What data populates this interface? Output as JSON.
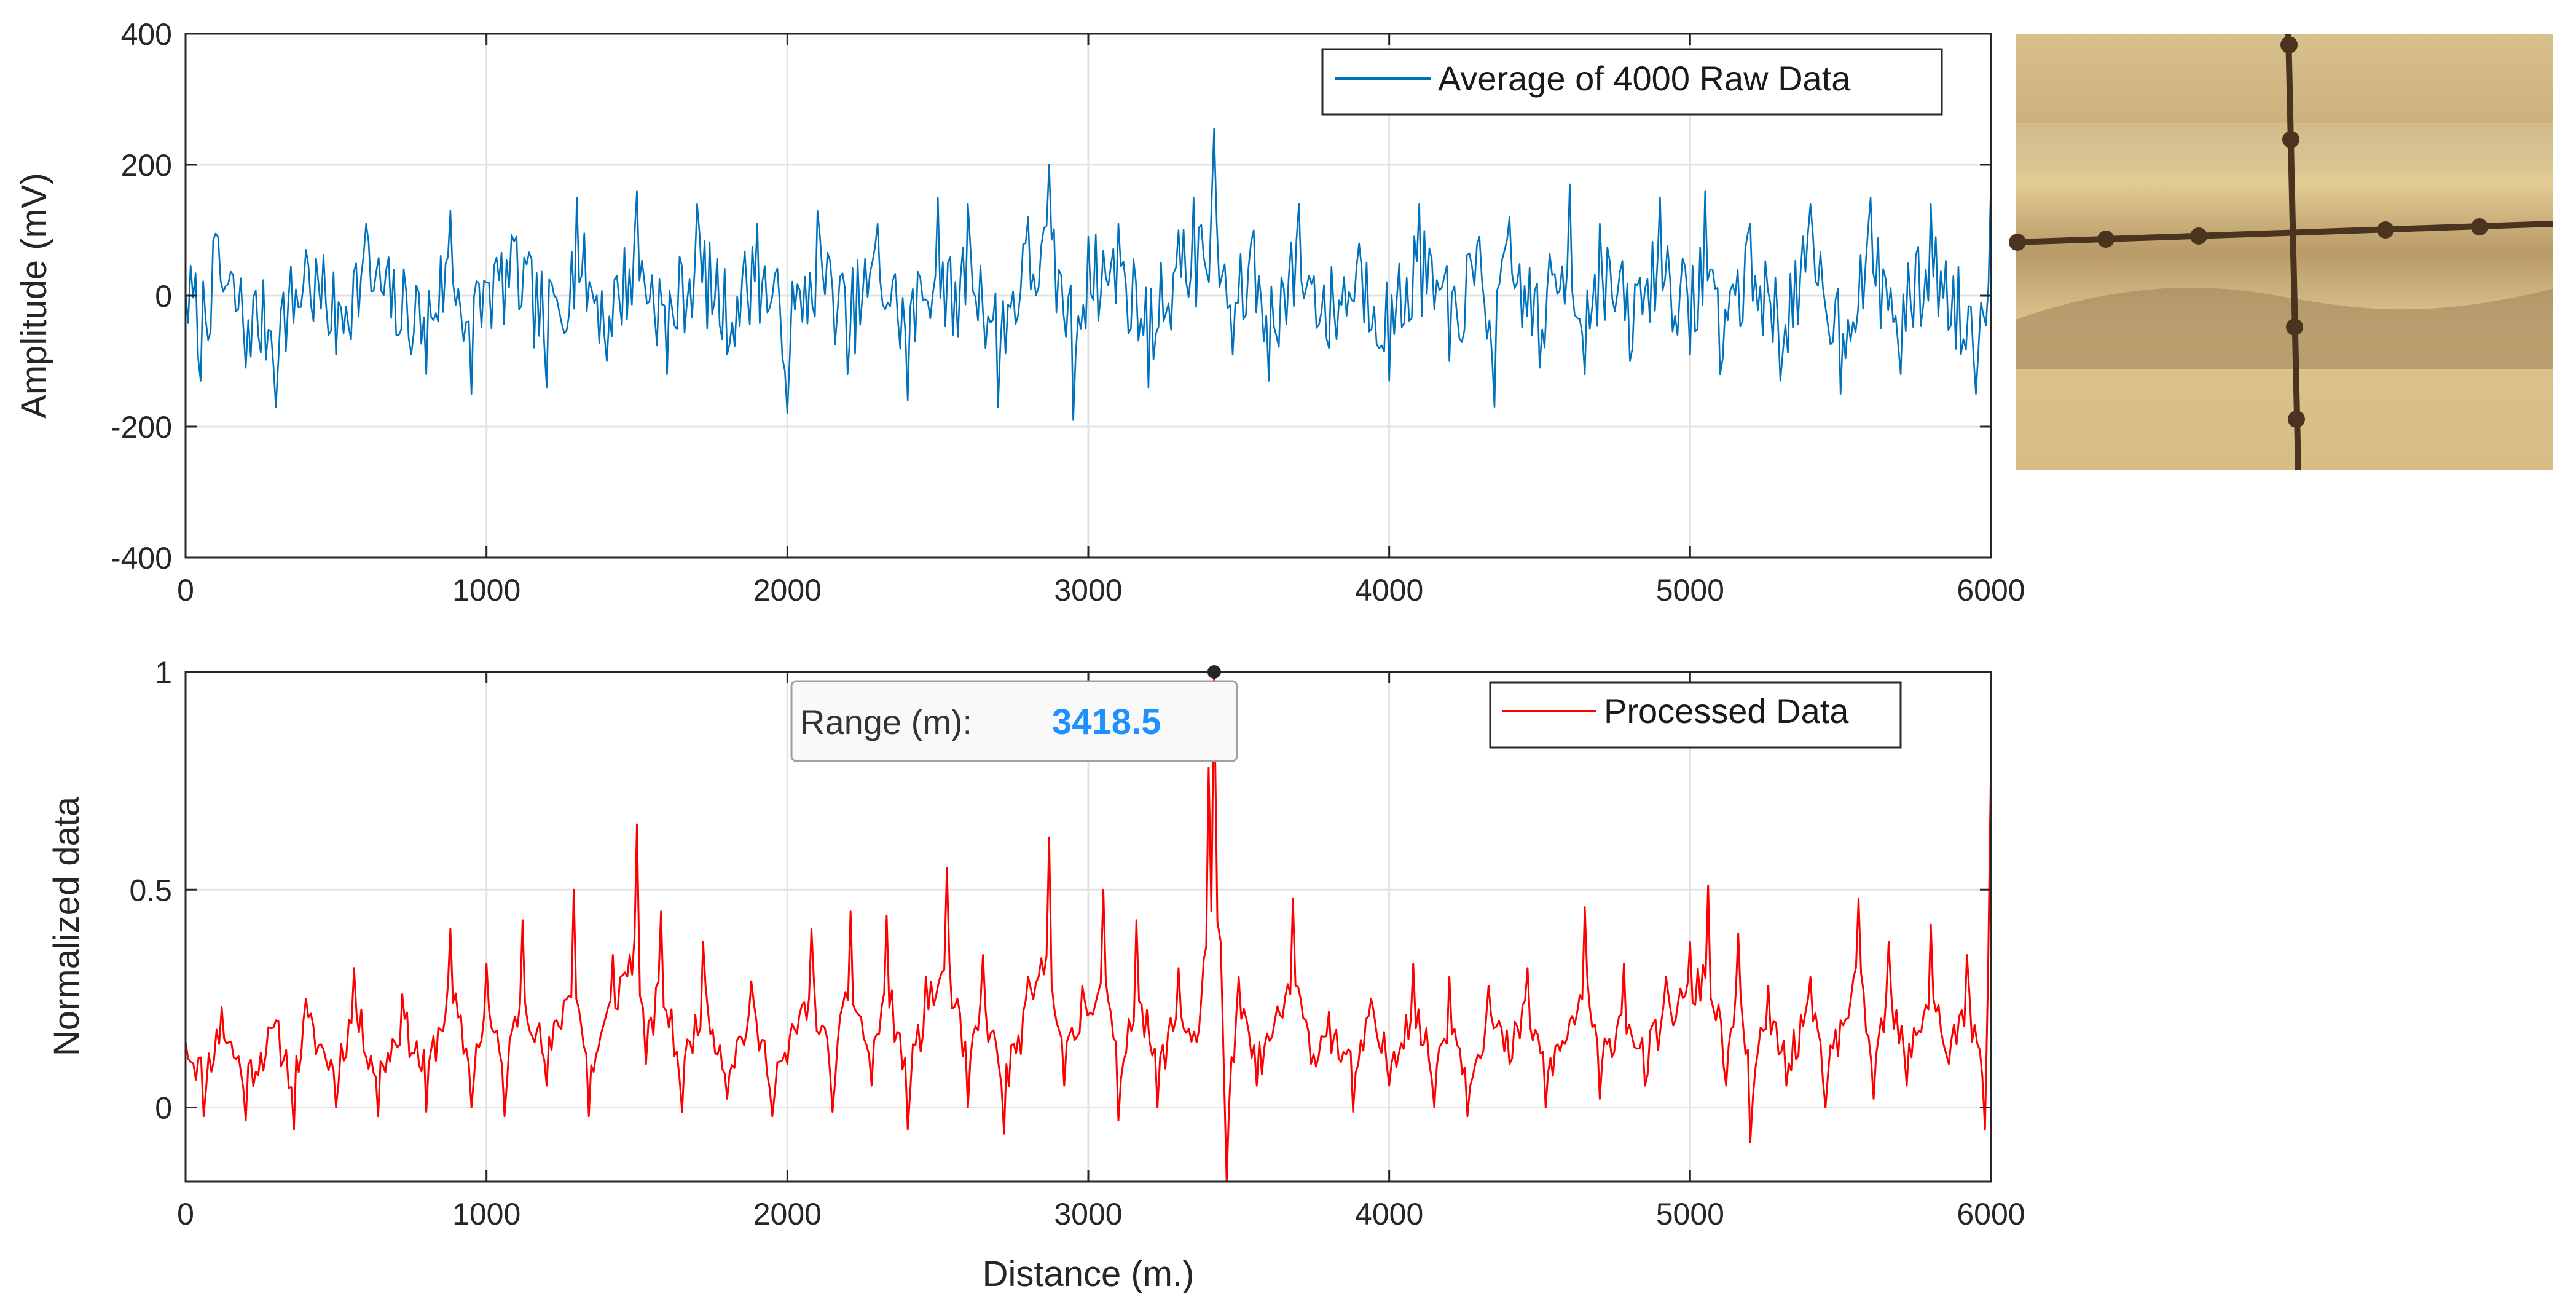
{
  "chart_data": [
    {
      "type": "line",
      "title": "",
      "xlabel": "",
      "ylabel": "Amplitude (mV)",
      "xlim": [
        0,
        6000
      ],
      "ylim": [
        -400,
        400
      ],
      "xticks": [
        0,
        1000,
        2000,
        3000,
        4000,
        5000,
        6000
      ],
      "yticks": [
        -400,
        -200,
        0,
        200,
        400
      ],
      "grid": true,
      "legend_position": "top-right",
      "series": [
        {
          "name": "Average of 4000 Raw Data",
          "color": "#0072bd",
          "x": [
            0,
            50,
            100,
            200,
            300,
            400,
            500,
            600,
            700,
            800,
            880,
            950,
            1000,
            1100,
            1200,
            1300,
            1400,
            1500,
            1600,
            1700,
            1800,
            1900,
            2000,
            2050,
            2100,
            2200,
            2300,
            2400,
            2500,
            2550,
            2600,
            2700,
            2800,
            2870,
            2950,
            3000,
            3100,
            3200,
            3300,
            3350,
            3418,
            3480,
            3550,
            3600,
            3700,
            3800,
            3900,
            4000,
            4100,
            4200,
            4300,
            4350,
            4400,
            4500,
            4600,
            4650,
            4700,
            4800,
            4900,
            5000,
            5050,
            5100,
            5200,
            5300,
            5400,
            5500,
            5600,
            5700,
            5800,
            5900,
            5950,
            6000
          ],
          "values": [
            5,
            -130,
            95,
            -110,
            -170,
            70,
            -90,
            110,
            -60,
            -120,
            130,
            -150,
            20,
            90,
            -140,
            150,
            -100,
            160,
            -120,
            140,
            -90,
            110,
            -180,
            -40,
            130,
            -120,
            110,
            -160,
            150,
            -60,
            140,
            -170,
            120,
            200,
            -190,
            90,
            110,
            -140,
            100,
            150,
            255,
            -90,
            100,
            -130,
            140,
            -80,
            80,
            -130,
            140,
            -100,
            90,
            -170,
            120,
            -110,
            170,
            -120,
            110,
            -100,
            150,
            -90,
            160,
            -120,
            110,
            -130,
            140,
            -150,
            150,
            -120,
            140,
            -90,
            -150,
            180
          ]
        }
      ]
    },
    {
      "type": "line",
      "title": "",
      "xlabel": "Distance (m.)",
      "ylabel": "Normalized data",
      "xlim": [
        0,
        6000
      ],
      "ylim": [
        -0.17,
        1
      ],
      "xticks": [
        0,
        1000,
        2000,
        3000,
        4000,
        5000,
        6000
      ],
      "yticks": [
        0,
        0.5,
        1
      ],
      "ytick_labels": [
        "0",
        "0.5",
        "1"
      ],
      "grid": true,
      "legend_position": "top-right",
      "series": [
        {
          "name": "Processed Data",
          "color": "#ff0000",
          "x": [
            0,
            60,
            120,
            200,
            300,
            360,
            400,
            500,
            560,
            640,
            720,
            800,
            880,
            950,
            1000,
            1060,
            1120,
            1200,
            1290,
            1340,
            1420,
            1500,
            1530,
            1580,
            1650,
            1720,
            1800,
            1880,
            1950,
            2000,
            2080,
            2150,
            2210,
            2280,
            2330,
            2400,
            2460,
            2530,
            2600,
            2650,
            2720,
            2800,
            2870,
            2920,
            2980,
            3050,
            3100,
            3160,
            3230,
            3300,
            3360,
            3400,
            3418,
            3440,
            3460,
            3500,
            3560,
            3620,
            3680,
            3740,
            3800,
            3880,
            3940,
            4000,
            4080,
            4150,
            4200,
            4260,
            4330,
            4400,
            4460,
            4520,
            4600,
            4650,
            4700,
            4780,
            4850,
            4920,
            5000,
            5060,
            5120,
            5160,
            5200,
            5260,
            5320,
            5400,
            5450,
            5500,
            5560,
            5610,
            5660,
            5720,
            5800,
            5860,
            5920,
            5980,
            6000
          ],
          "values": [
            0.15,
            -0.02,
            0.23,
            -0.03,
            0.2,
            -0.05,
            0.25,
            0.0,
            0.32,
            -0.02,
            0.26,
            -0.01,
            0.41,
            0.0,
            0.33,
            -0.02,
            0.43,
            0.05,
            0.5,
            -0.02,
            0.35,
            0.65,
            0.1,
            0.45,
            -0.01,
            0.38,
            0.02,
            0.29,
            -0.02,
            0.1,
            0.41,
            -0.01,
            0.45,
            0.05,
            0.44,
            -0.05,
            0.3,
            0.55,
            0.0,
            0.35,
            -0.06,
            0.3,
            0.62,
            0.05,
            0.28,
            0.5,
            -0.03,
            0.43,
            0.0,
            0.32,
            0.15,
            0.78,
            1.0,
            0.38,
            -0.17,
            0.3,
            0.05,
            0.2,
            0.48,
            0.1,
            0.22,
            -0.01,
            0.25,
            0.05,
            0.33,
            0.0,
            0.3,
            -0.02,
            0.28,
            0.1,
            0.32,
            0.0,
            0.2,
            0.46,
            0.02,
            0.33,
            0.05,
            0.3,
            0.38,
            0.51,
            0.05,
            0.4,
            -0.08,
            0.28,
            0.05,
            0.3,
            0.0,
            0.2,
            0.48,
            0.02,
            0.38,
            0.05,
            0.42,
            0.1,
            0.35,
            -0.05,
            0.8
          ]
        }
      ],
      "annotation": {
        "label": "Range (m):",
        "value": "3418.5",
        "x": 3418.5,
        "y": 1
      }
    }
  ],
  "inset_photo": {
    "description_icon": "crosshair-photo",
    "colors": {
      "sky": "#cdb27e",
      "grass_light": "#dfc58a",
      "grass_dark": "#a08658",
      "hill": "#8f7754",
      "line": "#4a3420"
    }
  }
}
